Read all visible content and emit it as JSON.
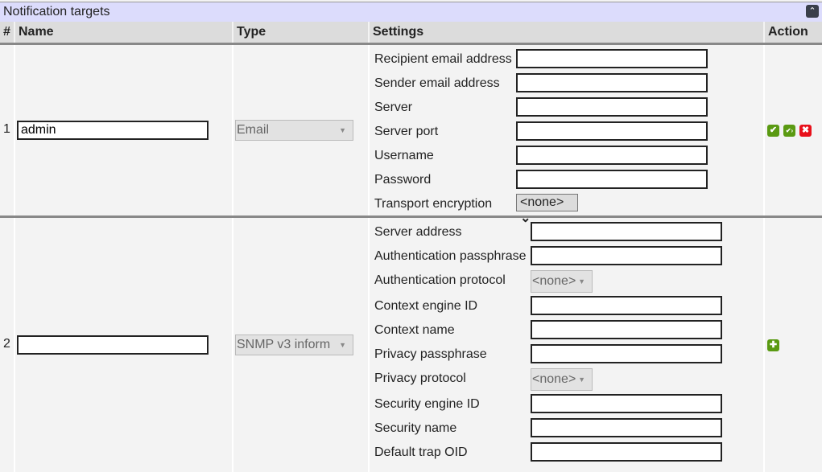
{
  "title": "Notification targets",
  "headers": {
    "num": "#",
    "name": "Name",
    "type": "Type",
    "settings": "Settings",
    "action": "Action"
  },
  "rows": [
    {
      "num": "1",
      "name": "admin",
      "type": "Email",
      "settings": [
        {
          "label": "Recipient email address",
          "kind": "text",
          "value": ""
        },
        {
          "label": "Sender email address",
          "kind": "text",
          "value": ""
        },
        {
          "label": "Server",
          "kind": "text",
          "value": ""
        },
        {
          "label": "Server port",
          "kind": "text",
          "value": ""
        },
        {
          "label": "Username",
          "kind": "text",
          "value": ""
        },
        {
          "label": "Password",
          "kind": "text",
          "value": ""
        },
        {
          "label": "Transport encryption",
          "kind": "select",
          "value": "<none>"
        }
      ],
      "actions": [
        {
          "icon": "check-icon",
          "color": "#5a9a12"
        },
        {
          "icon": "check-arrow-icon",
          "color": "#5a9a12"
        },
        {
          "icon": "delete-icon",
          "color": "#e8101a"
        }
      ]
    },
    {
      "num": "2",
      "name": "",
      "type": "SNMP v3 inform",
      "settings": [
        {
          "label": "Server address",
          "kind": "text",
          "value": ""
        },
        {
          "label": "Authentication passphrase",
          "kind": "text",
          "value": ""
        },
        {
          "label": "Authentication protocol",
          "kind": "disabled-select",
          "value": "<none>"
        },
        {
          "label": "Context engine ID",
          "kind": "text",
          "value": ""
        },
        {
          "label": "Context name",
          "kind": "text",
          "value": ""
        },
        {
          "label": "Privacy passphrase",
          "kind": "text",
          "value": ""
        },
        {
          "label": "Privacy protocol",
          "kind": "disabled-select",
          "value": "<none>"
        },
        {
          "label": "Security engine ID",
          "kind": "text",
          "value": ""
        },
        {
          "label": "Security name",
          "kind": "text",
          "value": ""
        },
        {
          "label": "Default trap OID",
          "kind": "text",
          "value": ""
        }
      ],
      "actions": [
        {
          "icon": "add-icon",
          "color": "#5a9a12"
        }
      ]
    }
  ]
}
